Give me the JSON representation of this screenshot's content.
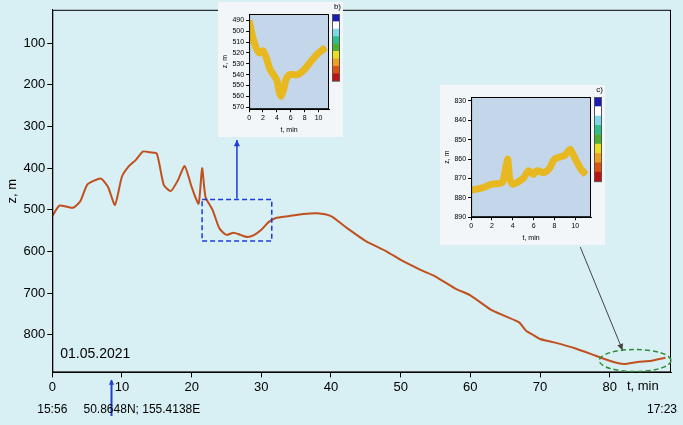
{
  "chart_data": [
    {
      "type": "line",
      "x": [
        0,
        1,
        2,
        3,
        4,
        5,
        6,
        7,
        8,
        9,
        10,
        11,
        12,
        13,
        14,
        15,
        16,
        17,
        18,
        19,
        20,
        21,
        21.5,
        22,
        23,
        24,
        25,
        26,
        27,
        28,
        29,
        30,
        31,
        32,
        34,
        36,
        38,
        40,
        42,
        45,
        48,
        50,
        53,
        55,
        58,
        60,
        63,
        65,
        67,
        68,
        69,
        70,
        72,
        75,
        78,
        80,
        82,
        84,
        86,
        88
      ],
      "values": [
        515,
        490,
        492,
        495,
        480,
        440,
        430,
        425,
        445,
        488,
        420,
        395,
        380,
        360,
        362,
        365,
        440,
        455,
        430,
        395,
        445,
        485,
        400,
        470,
        500,
        545,
        560,
        555,
        560,
        565,
        560,
        548,
        530,
        520,
        515,
        510,
        508,
        515,
        540,
        575,
        600,
        620,
        645,
        660,
        690,
        705,
        740,
        755,
        770,
        790,
        800,
        810,
        818,
        832,
        850,
        862,
        870,
        865,
        862,
        855
      ],
      "color": "#c0501e",
      "xlim": [
        0,
        88.8
      ],
      "xticks": [
        0,
        10,
        20,
        30,
        40,
        50,
        60,
        70,
        80
      ],
      "ylim": [
        20,
        890
      ],
      "yticks": [
        100,
        200,
        300,
        400,
        500,
        600,
        700,
        800
      ],
      "x_label": "t, min",
      "y_label": "z, m",
      "annotations": [
        {
          "text": "01.05.2021"
        },
        {
          "x": 0,
          "text": "15:56"
        },
        {
          "x": 8.5,
          "text": "50.8648N; 155.4138E",
          "marker": "arrow",
          "color": "#2040d0"
        },
        {
          "x": 88.8,
          "text": "17:23"
        }
      ],
      "zoom_boxes": [
        {
          "type": "rectangle",
          "xlim": [
            21.5,
            31.5
          ],
          "ylim": [
            475,
            575
          ],
          "line_style": "dashed",
          "color": "#1a3fd6"
        },
        {
          "type": "ellipse",
          "xlim": [
            78.5,
            88.8
          ],
          "ylim": [
            835,
            888
          ],
          "line_style": "dashed",
          "color": "#2e8b3a"
        }
      ]
    },
    {
      "type": "line",
      "title": "b)",
      "x": [
        0,
        0.5,
        1,
        1.5,
        2,
        2.5,
        3,
        3.5,
        4,
        4.3,
        4.6,
        5,
        5.3,
        5.8,
        6.3,
        7,
        8,
        9,
        10,
        11
      ],
      "values": [
        490,
        505,
        515,
        520,
        518,
        525,
        535,
        540,
        545,
        555,
        560,
        553,
        545,
        540,
        540,
        540,
        535,
        527,
        520,
        515
      ],
      "color": "#d62010",
      "xlim": [
        0,
        11.5
      ],
      "xticks": [
        0,
        2,
        4,
        6,
        8,
        10
      ],
      "ylim": [
        484,
        572
      ],
      "yticks": [
        490,
        500,
        510,
        520,
        530,
        540,
        550,
        560,
        570
      ],
      "x_label": "t, min",
      "y_label": "z, m"
    },
    {
      "type": "line",
      "title": "c)",
      "x": [
        0,
        1,
        2,
        3,
        3.5,
        3.7,
        4,
        5,
        5.5,
        6,
        6.3,
        7,
        7.5,
        8,
        9,
        9.5,
        10,
        10.5,
        11
      ],
      "values": [
        876,
        875,
        873,
        872,
        860,
        870,
        873,
        870,
        866,
        868,
        866,
        867,
        865,
        860,
        858,
        855,
        860,
        865,
        868
      ],
      "color": "#d62010",
      "xlim": [
        0,
        11.5
      ],
      "xticks": [
        0,
        2,
        4,
        6,
        8,
        10
      ],
      "ylim": [
        828,
        890
      ],
      "yticks": [
        830,
        840,
        850,
        860,
        870,
        880,
        890
      ],
      "x_label": "t, min",
      "y_label": "z, m"
    }
  ]
}
